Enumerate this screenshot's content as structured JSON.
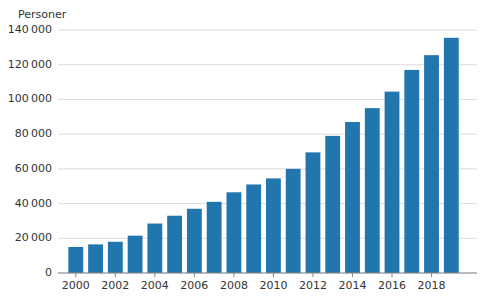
{
  "chart_data": {
    "type": "bar",
    "ylabel": "Personer",
    "x": [
      2000,
      2001,
      2002,
      2003,
      2004,
      2005,
      2006,
      2007,
      2008,
      2009,
      2010,
      2011,
      2012,
      2013,
      2014,
      2015,
      2016,
      2017,
      2018,
      2019
    ],
    "values": [
      15000,
      16500,
      18000,
      21500,
      28500,
      33000,
      37000,
      41000,
      46500,
      51000,
      54500,
      60000,
      69500,
      79000,
      87000,
      95000,
      104500,
      117000,
      125500,
      135500
    ],
    "color": "#2176AE",
    "xlim": [
      1999.1,
      2020.3
    ],
    "xticks": [
      2000,
      2002,
      2004,
      2006,
      2008,
      2010,
      2012,
      2014,
      2016,
      2018
    ],
    "ylim": [
      0,
      140000
    ],
    "yticks": [
      0,
      {
        "value": 20000,
        "label": "20 000"
      },
      {
        "value": 40000,
        "label": "40 000"
      },
      {
        "value": 60000,
        "label": "60 000"
      },
      {
        "value": 80000,
        "label": "80 000"
      },
      {
        "value": 100000,
        "label": "100 000"
      },
      {
        "value": 120000,
        "label": "120 000"
      },
      {
        "value": 140000,
        "label": "140 000"
      }
    ],
    "grid": true
  }
}
